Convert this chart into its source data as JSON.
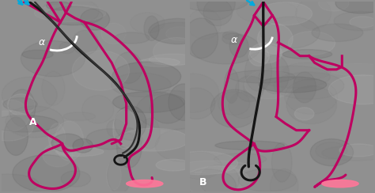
{
  "fig_width": 4.74,
  "fig_height": 2.44,
  "dpi": 100,
  "magenta": "#BE0060",
  "cyan_arrow": "#00AADD",
  "alpha_label": "α",
  "label_A": "A",
  "label_B": "B",
  "pink_oval": "#FF7799"
}
